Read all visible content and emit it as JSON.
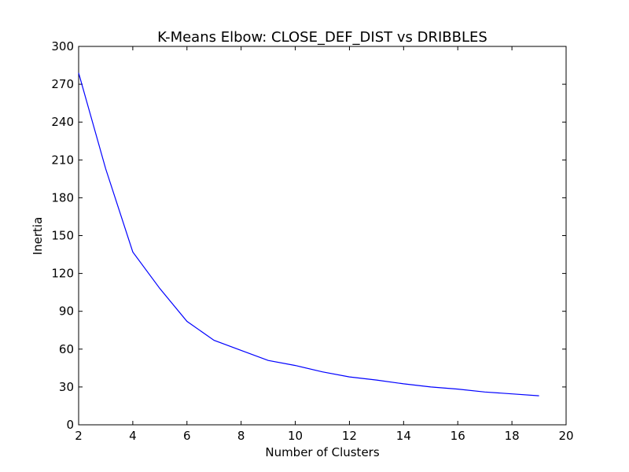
{
  "chart_data": {
    "type": "line",
    "title": "K-Means Elbow: CLOSE_DEF_DIST vs DRIBBLES",
    "xlabel": "Number of Clusters",
    "ylabel": "Inertia",
    "xlim": [
      2,
      20
    ],
    "ylim": [
      0,
      300
    ],
    "xticks": [
      2,
      4,
      6,
      8,
      10,
      12,
      14,
      16,
      18,
      20
    ],
    "yticks": [
      0,
      30,
      60,
      90,
      120,
      150,
      180,
      210,
      240,
      270,
      300
    ],
    "grid": false,
    "series": [
      {
        "color": "#0000ff",
        "x": [
          2,
          3,
          4,
          5,
          6,
          7,
          8,
          9,
          10,
          11,
          12,
          13,
          14,
          15,
          16,
          17,
          18,
          19
        ],
        "y": [
          279,
          203,
          137,
          108,
          82,
          67,
          59,
          51,
          47,
          42,
          38,
          35.5,
          32.5,
          30,
          28.3,
          26,
          24.5,
          23
        ]
      }
    ]
  }
}
